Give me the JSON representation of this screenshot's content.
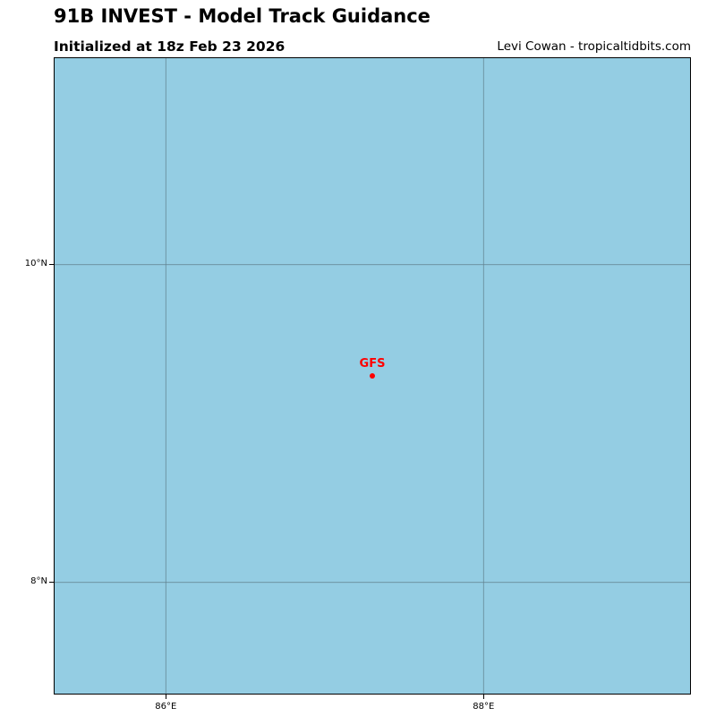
{
  "header": {
    "title": "91B INVEST - Model Track Guidance",
    "subtitle": "Initialized at 18z Feb 23 2026",
    "credit": "Levi Cowan - tropicaltidbits.com"
  },
  "map": {
    "ocean_color": "#94cde3",
    "grid_color": "#5f7f8c",
    "lon_range": [
      85.3,
      89.3
    ],
    "lat_range": [
      7.3,
      11.3
    ],
    "gridlines": {
      "lons": [
        86,
        88
      ],
      "lats": [
        8,
        10
      ]
    },
    "lat_ticks": [
      {
        "value": 10,
        "label": "10°N"
      },
      {
        "value": 8,
        "label": "8°N"
      }
    ],
    "lon_ticks": [
      {
        "value": 86,
        "label": "86°E"
      },
      {
        "value": 88,
        "label": "88°E"
      }
    ],
    "points": [
      {
        "label": "GFS",
        "lon": 87.3,
        "lat": 9.3,
        "color": "#ff0000"
      }
    ]
  }
}
